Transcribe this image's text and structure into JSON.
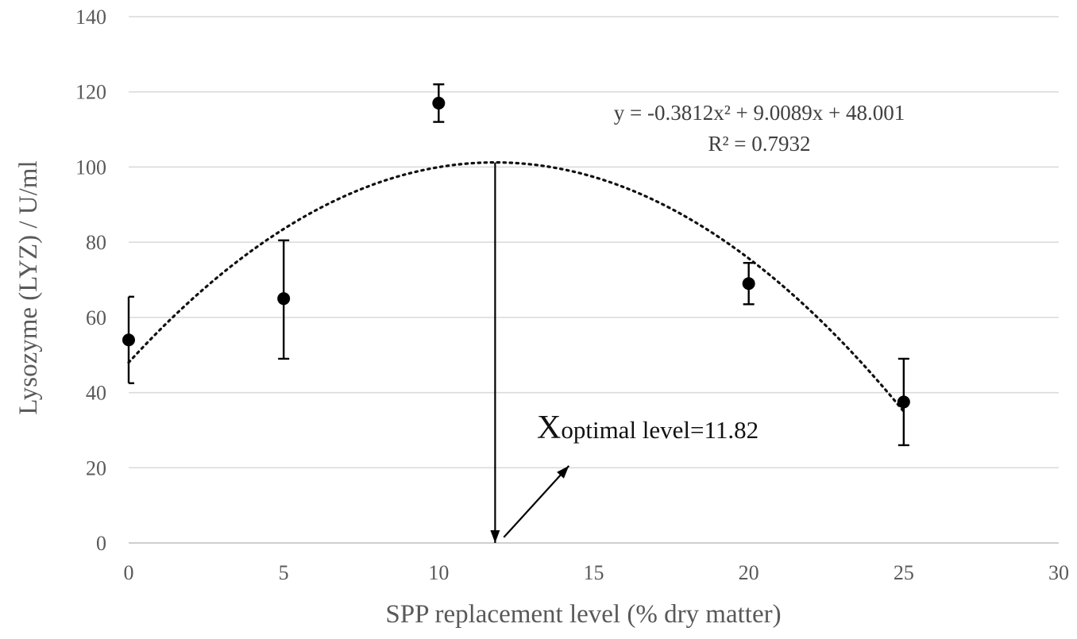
{
  "chart_data": {
    "type": "scatter",
    "xlabel": "SPP replacement level (% dry matter)",
    "ylabel": "Lysozyme (LYZ) / U/ml",
    "xlim": [
      0,
      30
    ],
    "ylim": [
      0,
      140
    ],
    "x_ticks": [
      "0",
      "5",
      "10",
      "15",
      "20",
      "25",
      "30"
    ],
    "y_ticks": [
      "0",
      "20",
      "40",
      "60",
      "80",
      "100",
      "120",
      "140"
    ],
    "grid": "horizontal",
    "series": [
      {
        "x": [
          0,
          5,
          10,
          20,
          25
        ],
        "y": [
          54,
          65,
          117,
          69,
          37.5
        ],
        "error_low": [
          42.5,
          49,
          112,
          63.5,
          26
        ],
        "error_high": [
          65.5,
          80.5,
          122,
          74.5,
          49
        ],
        "marker": "filled-circle",
        "color": "#000000"
      }
    ],
    "trendline": {
      "type": "polynomial",
      "order": 2,
      "coefficients": [
        -0.3812,
        9.0089,
        48.001
      ],
      "style": "dotted",
      "equation_label": "y = -0.3812x² + 9.0089x + 48.001",
      "r2_label": "R² = 0.7932"
    },
    "annotation": {
      "symbol": "X",
      "label": "optimal level=11.82",
      "optimal_x": 11.82,
      "arrow_from": [
        11.82,
        101.2
      ],
      "arrow_to": [
        11.82,
        0
      ],
      "pointer_from": [
        12.1,
        1.5
      ],
      "pointer_to": [
        14.2,
        20.5
      ]
    }
  }
}
